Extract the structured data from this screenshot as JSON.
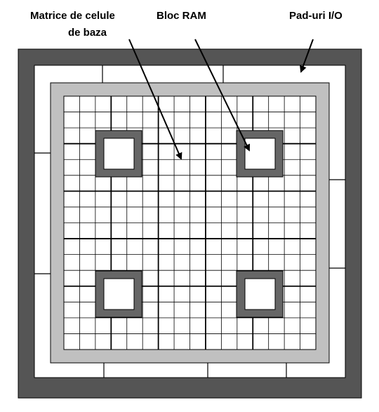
{
  "labels": {
    "matrix_line1": "Matrice de celule",
    "matrix_line2": "de baza",
    "ram_block": "Bloc RAM",
    "io_pads": "Pad-uri I/O"
  },
  "colors": {
    "outer_frame": "#555555",
    "core_border": "#c0c0c0",
    "ram_block": "#666666",
    "grid_line": "#000000"
  }
}
